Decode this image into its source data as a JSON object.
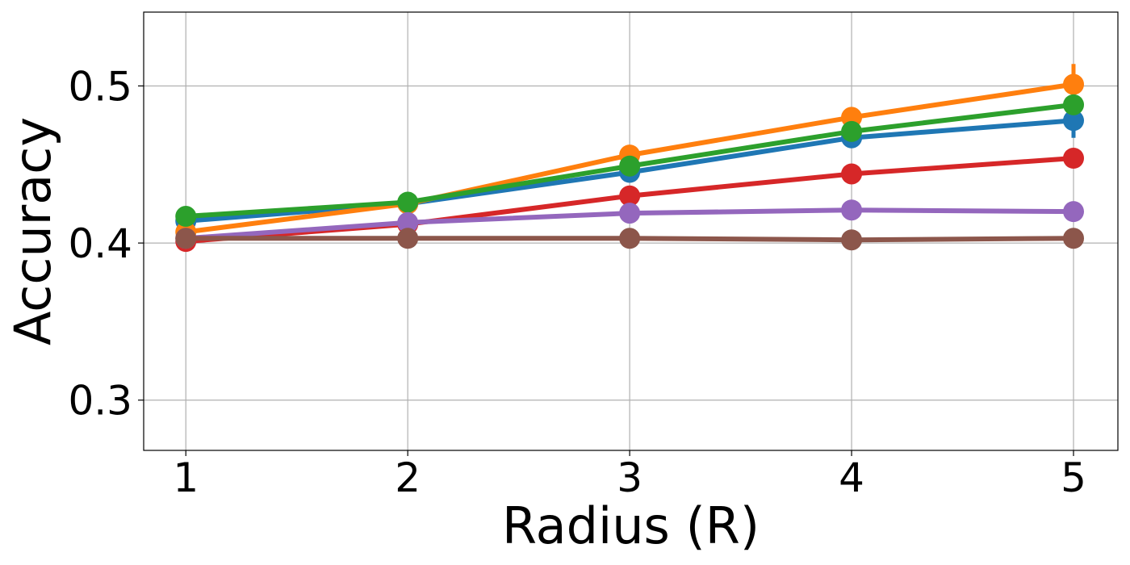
{
  "chart_data": {
    "type": "line",
    "title": "",
    "xlabel": "Radius (R)",
    "ylabel": "Accuracy",
    "x": [
      1,
      2,
      3,
      4,
      5
    ],
    "xlim": [
      0.81,
      5.2
    ],
    "ylim": [
      0.268,
      0.547
    ],
    "xticks": [
      "1",
      "2",
      "3",
      "4",
      "5"
    ],
    "yticks": [
      "0.3",
      "0.4",
      "0.5"
    ],
    "ytick_values": [
      0.3,
      0.4,
      0.5
    ],
    "grid": true,
    "legend": "none",
    "series": [
      {
        "color": "#1f77b4",
        "values": [
          0.414,
          0.425,
          0.445,
          0.467,
          0.478
        ],
        "error": [
          0.002,
          0.002,
          0.003,
          0.004,
          0.011
        ]
      },
      {
        "color": "#ff7f0e",
        "values": [
          0.407,
          0.425,
          0.456,
          0.48,
          0.501
        ],
        "error": [
          0.002,
          0.002,
          0.003,
          0.006,
          0.013
        ]
      },
      {
        "color": "#2ca02c",
        "values": [
          0.417,
          0.426,
          0.449,
          0.471,
          0.488
        ],
        "error": [
          0.002,
          0.002,
          0.003,
          0.004,
          0.005
        ]
      },
      {
        "color": "#d62728",
        "values": [
          0.401,
          0.412,
          0.43,
          0.444,
          0.454
        ],
        "error": [
          0.002,
          0.002,
          0.003,
          0.003,
          0.004
        ]
      },
      {
        "color": "#9467bd",
        "values": [
          0.403,
          0.413,
          0.419,
          0.421,
          0.42
        ],
        "error": [
          0.002,
          0.002,
          0.002,
          0.002,
          0.002
        ]
      },
      {
        "color": "#8c564b",
        "values": [
          0.403,
          0.403,
          0.403,
          0.402,
          0.403
        ],
        "error": [
          0.002,
          0.002,
          0.002,
          0.002,
          0.002
        ]
      }
    ]
  }
}
